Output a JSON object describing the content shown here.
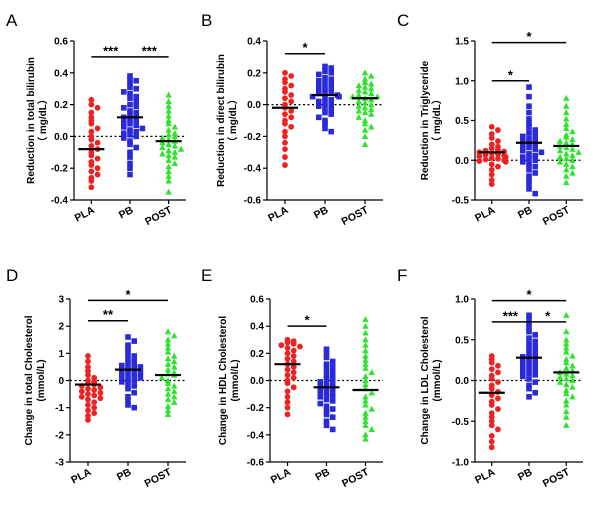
{
  "colors": {
    "PLA": "#ee2222",
    "PB": "#2a2ad8",
    "POST": "#2ee22e",
    "axis": "#000000",
    "mean": "#000000"
  },
  "chart_data": [
    {
      "panel": "A",
      "type": "scatter",
      "categories": [
        "PLA",
        "PB",
        "POST"
      ],
      "ylabel": [
        "Reduction in total bilirubin",
        "（ mg/dL）"
      ],
      "ylim": [
        -0.4,
        0.6
      ],
      "yticks": [
        -0.4,
        -0.2,
        0.0,
        0.2,
        0.4,
        0.6
      ],
      "ytick_labels": [
        "-0.4",
        "-0.2",
        "0.0",
        "0.2",
        "0.4",
        "0.6"
      ],
      "reference_line": 0,
      "grid": false,
      "series": [
        {
          "category": "PLA",
          "marker": "circle",
          "mean": -0.08,
          "values": [
            0.23,
            0.2,
            0.18,
            0.15,
            0.12,
            0.1,
            0.08,
            0.05,
            0.03,
            0.0,
            -0.02,
            -0.04,
            -0.06,
            -0.08,
            -0.1,
            -0.12,
            -0.14,
            -0.16,
            -0.18,
            -0.2,
            -0.22,
            -0.24,
            -0.26,
            -0.28,
            -0.32
          ]
        },
        {
          "category": "PB",
          "marker": "square",
          "mean": 0.12,
          "values": [
            0.38,
            0.36,
            0.35,
            0.33,
            0.31,
            0.3,
            0.28,
            0.27,
            0.25,
            0.24,
            0.22,
            0.2,
            0.19,
            0.18,
            0.16,
            0.15,
            0.14,
            0.13,
            0.12,
            0.11,
            0.1,
            0.09,
            0.08,
            0.07,
            0.06,
            0.05,
            0.04,
            0.03,
            0.02,
            0.01,
            0.0,
            -0.01,
            -0.03,
            -0.05,
            -0.07,
            -0.1,
            -0.13,
            -0.17,
            -0.2,
            -0.24
          ]
        },
        {
          "category": "POST",
          "marker": "triangle",
          "mean": -0.03,
          "values": [
            0.26,
            0.22,
            0.19,
            0.16,
            0.13,
            0.1,
            0.08,
            0.06,
            0.04,
            0.02,
            0.01,
            0.0,
            -0.01,
            -0.02,
            -0.03,
            -0.04,
            -0.05,
            -0.06,
            -0.07,
            -0.08,
            -0.09,
            -0.1,
            -0.11,
            -0.12,
            -0.13,
            -0.15,
            -0.17,
            -0.19,
            -0.22,
            -0.25,
            -0.28,
            -0.35
          ]
        }
      ],
      "significance": [
        {
          "from": "PLA",
          "to": "PB",
          "label": "***",
          "y": 0.5
        },
        {
          "from": "PB",
          "to": "POST",
          "label": "***",
          "y": 0.5
        }
      ]
    },
    {
      "panel": "B",
      "type": "scatter",
      "categories": [
        "PLA",
        "PB",
        "POST"
      ],
      "ylabel": [
        "Reduction in direct bilirubin",
        "（ mg/dL）"
      ],
      "ylim": [
        -0.6,
        0.4
      ],
      "yticks": [
        -0.6,
        -0.4,
        -0.2,
        0.0,
        0.2,
        0.4
      ],
      "ytick_labels": [
        "-0.6",
        "-0.4",
        "-0.2",
        "0.0",
        "0.2",
        "0.4"
      ],
      "reference_line": 0,
      "grid": false,
      "series": [
        {
          "category": "PLA",
          "marker": "circle",
          "mean": -0.02,
          "values": [
            0.2,
            0.18,
            0.16,
            0.14,
            0.12,
            0.1,
            0.08,
            0.06,
            0.04,
            0.02,
            0.0,
            -0.02,
            -0.04,
            -0.06,
            -0.08,
            -0.1,
            -0.12,
            -0.14,
            -0.17,
            -0.2,
            -0.24,
            -0.28,
            -0.33,
            -0.38
          ]
        },
        {
          "category": "PB",
          "marker": "square",
          "mean": 0.06,
          "values": [
            0.24,
            0.23,
            0.21,
            0.2,
            0.19,
            0.17,
            0.16,
            0.15,
            0.14,
            0.13,
            0.12,
            0.11,
            0.1,
            0.09,
            0.08,
            0.08,
            0.07,
            0.06,
            0.05,
            0.05,
            0.04,
            0.03,
            0.02,
            0.01,
            0.0,
            -0.01,
            -0.02,
            -0.03,
            -0.05,
            -0.06,
            -0.08,
            -0.1,
            -0.12,
            -0.15,
            -0.17
          ]
        },
        {
          "category": "POST",
          "marker": "triangle",
          "mean": 0.04,
          "values": [
            0.2,
            0.18,
            0.16,
            0.14,
            0.13,
            0.12,
            0.11,
            0.1,
            0.09,
            0.08,
            0.07,
            0.06,
            0.05,
            0.05,
            0.04,
            0.03,
            0.02,
            0.01,
            0.0,
            -0.01,
            -0.02,
            -0.03,
            -0.04,
            -0.05,
            -0.06,
            -0.08,
            -0.1,
            -0.12,
            -0.14,
            -0.16,
            -0.2,
            -0.25
          ]
        }
      ],
      "significance": [
        {
          "from": "PLA",
          "to": "PB",
          "label": "*",
          "y": 0.32
        }
      ]
    },
    {
      "panel": "C",
      "type": "scatter",
      "categories": [
        "PLA",
        "PB",
        "POST"
      ],
      "ylabel": [
        "Reduction in Triglyceride",
        "（ mg/dL）"
      ],
      "ylim": [
        -0.5,
        1.5
      ],
      "yticks": [
        -0.5,
        0.0,
        0.5,
        1.0,
        1.5
      ],
      "ytick_labels": [
        "-0.5",
        "0.0",
        "0.5",
        "1.0",
        "1.5"
      ],
      "reference_line": 0,
      "grid": false,
      "series": [
        {
          "category": "PLA",
          "marker": "circle",
          "mean": 0.1,
          "values": [
            0.42,
            0.38,
            0.33,
            0.28,
            0.24,
            0.2,
            0.17,
            0.15,
            0.13,
            0.12,
            0.11,
            0.1,
            0.09,
            0.08,
            0.07,
            0.06,
            0.05,
            0.04,
            0.03,
            0.02,
            0.01,
            0.0,
            -0.01,
            -0.02,
            -0.05,
            -0.08,
            -0.12,
            -0.18,
            -0.25,
            -0.3
          ]
        },
        {
          "category": "PB",
          "marker": "square",
          "mean": 0.22,
          "values": [
            0.92,
            0.8,
            0.68,
            0.6,
            0.52,
            0.47,
            0.42,
            0.38,
            0.35,
            0.32,
            0.3,
            0.28,
            0.26,
            0.24,
            0.22,
            0.2,
            0.18,
            0.16,
            0.14,
            0.12,
            0.1,
            0.08,
            0.06,
            0.04,
            0.02,
            0.0,
            -0.02,
            -0.05,
            -0.08,
            -0.12,
            -0.16,
            -0.2,
            -0.25,
            -0.3,
            -0.36,
            -0.42
          ]
        },
        {
          "category": "POST",
          "marker": "triangle",
          "mean": 0.18,
          "values": [
            0.78,
            0.68,
            0.6,
            0.52,
            0.45,
            0.4,
            0.36,
            0.32,
            0.29,
            0.26,
            0.24,
            0.22,
            0.2,
            0.18,
            0.16,
            0.14,
            0.12,
            0.1,
            0.08,
            0.06,
            0.04,
            0.02,
            0.0,
            -0.02,
            -0.05,
            -0.08,
            -0.12,
            -0.16,
            -0.2,
            -0.28
          ]
        }
      ],
      "significance": [
        {
          "from": "PLA",
          "to": "PB",
          "label": "*",
          "y": 1.0
        },
        {
          "from": "PLA",
          "to": "POST",
          "label": "*",
          "y": 1.48
        }
      ]
    },
    {
      "panel": "D",
      "type": "scatter",
      "categories": [
        "PLA",
        "PB",
        "POST"
      ],
      "ylabel": [
        "Change in total Cholesterol",
        "(mmol/L)"
      ],
      "ylim": [
        -3,
        3
      ],
      "yticks": [
        -3,
        -2,
        -1,
        0,
        1,
        2,
        3
      ],
      "ytick_labels": [
        "-3",
        "-2",
        "-1",
        "0",
        "1",
        "2",
        "3"
      ],
      "reference_line": 0,
      "grid": false,
      "series": [
        {
          "category": "PLA",
          "marker": "circle",
          "mean": -0.15,
          "values": [
            0.9,
            0.7,
            0.5,
            0.35,
            0.2,
            0.1,
            0.0,
            -0.05,
            -0.1,
            -0.15,
            -0.2,
            -0.25,
            -0.3,
            -0.35,
            -0.4,
            -0.45,
            -0.5,
            -0.55,
            -0.6,
            -0.65,
            -0.7,
            -0.8,
            -0.9,
            -1.0,
            -1.1,
            -1.2,
            -1.3,
            -1.45
          ]
        },
        {
          "category": "PB",
          "marker": "square",
          "mean": 0.4,
          "values": [
            1.6,
            1.45,
            1.3,
            1.15,
            1.0,
            0.9,
            0.8,
            0.7,
            0.65,
            0.6,
            0.55,
            0.5,
            0.45,
            0.4,
            0.35,
            0.3,
            0.25,
            0.2,
            0.15,
            0.1,
            0.05,
            0.0,
            -0.05,
            -0.1,
            -0.2,
            -0.3,
            -0.45,
            -0.6,
            -0.75,
            -0.9,
            -1.0
          ]
        },
        {
          "category": "POST",
          "marker": "triangle",
          "mean": 0.2,
          "values": [
            1.8,
            1.65,
            1.5,
            1.35,
            1.2,
            1.05,
            0.9,
            0.8,
            0.7,
            0.6,
            0.5,
            0.4,
            0.3,
            0.25,
            0.2,
            0.1,
            0.0,
            -0.1,
            -0.2,
            -0.3,
            -0.4,
            -0.5,
            -0.6,
            -0.7,
            -0.8,
            -0.95,
            -1.1,
            -1.25
          ]
        }
      ],
      "significance": [
        {
          "from": "PLA",
          "to": "PB",
          "label": "**",
          "y": 2.2
        },
        {
          "from": "PLA",
          "to": "POST",
          "label": "*",
          "y": 2.95
        }
      ]
    },
    {
      "panel": "E",
      "type": "scatter",
      "categories": [
        "PLA",
        "PB",
        "POST"
      ],
      "ylabel": [
        "Change in HDL Cholesterol",
        "(mmol/L)"
      ],
      "ylim": [
        -0.6,
        0.6
      ],
      "yticks": [
        -0.6,
        -0.4,
        -0.2,
        0.0,
        0.2,
        0.4,
        0.6
      ],
      "ytick_labels": [
        "-0.6",
        "-0.4",
        "-0.2",
        "0.0",
        "0.2",
        "0.4",
        "0.6"
      ],
      "reference_line": 0,
      "grid": false,
      "series": [
        {
          "category": "PLA",
          "marker": "circle",
          "mean": 0.12,
          "values": [
            0.3,
            0.29,
            0.28,
            0.27,
            0.26,
            0.25,
            0.24,
            0.22,
            0.2,
            0.18,
            0.16,
            0.14,
            0.12,
            0.1,
            0.08,
            0.06,
            0.04,
            0.02,
            0.0,
            -0.02,
            -0.05,
            -0.08,
            -0.12,
            -0.16,
            -0.2,
            -0.25
          ]
        },
        {
          "category": "PB",
          "marker": "square",
          "mean": -0.05,
          "values": [
            0.23,
            0.2,
            0.17,
            0.14,
            0.12,
            0.1,
            0.08,
            0.06,
            0.04,
            0.02,
            0.01,
            0.0,
            -0.01,
            -0.03,
            -0.04,
            -0.05,
            -0.06,
            -0.07,
            -0.08,
            -0.1,
            -0.11,
            -0.12,
            -0.14,
            -0.15,
            -0.17,
            -0.19,
            -0.21,
            -0.23,
            -0.25,
            -0.27,
            -0.3,
            -0.33,
            -0.36
          ]
        },
        {
          "category": "POST",
          "marker": "triangle",
          "mean": -0.07,
          "values": [
            0.45,
            0.4,
            0.35,
            0.3,
            0.26,
            0.22,
            0.18,
            0.15,
            0.12,
            0.09,
            0.06,
            0.03,
            0.0,
            -0.03,
            -0.06,
            -0.09,
            -0.12,
            -0.15,
            -0.18,
            -0.21,
            -0.24,
            -0.27,
            -0.3,
            -0.33,
            -0.36,
            -0.4,
            -0.43
          ]
        }
      ],
      "significance": [
        {
          "from": "PLA",
          "to": "PB",
          "label": "*",
          "y": 0.4
        }
      ]
    },
    {
      "panel": "F",
      "type": "scatter",
      "categories": [
        "PLA",
        "PB",
        "POST"
      ],
      "ylabel": [
        "Change in LDL Cholesterol",
        "(mmol/L)"
      ],
      "ylim": [
        -1.0,
        1.0
      ],
      "yticks": [
        -1.0,
        -0.5,
        0.0,
        0.5,
        1.0
      ],
      "ytick_labels": [
        "-1.0",
        "-0.5",
        "0.0",
        "0.5",
        "1.0"
      ],
      "reference_line": 0,
      "grid": false,
      "series": [
        {
          "category": "PLA",
          "marker": "circle",
          "mean": -0.15,
          "values": [
            0.3,
            0.26,
            0.22,
            0.18,
            0.14,
            0.1,
            0.06,
            0.02,
            -0.02,
            -0.06,
            -0.1,
            -0.14,
            -0.18,
            -0.22,
            -0.26,
            -0.3,
            -0.35,
            -0.4,
            -0.45,
            -0.5,
            -0.55,
            -0.6,
            -0.68,
            -0.75,
            -0.82
          ]
        },
        {
          "category": "PB",
          "marker": "square",
          "mean": 0.28,
          "values": [
            0.8,
            0.75,
            0.7,
            0.65,
            0.6,
            0.56,
            0.52,
            0.48,
            0.45,
            0.42,
            0.39,
            0.36,
            0.33,
            0.31,
            0.29,
            0.27,
            0.25,
            0.23,
            0.21,
            0.19,
            0.17,
            0.15,
            0.13,
            0.11,
            0.09,
            0.07,
            0.05,
            0.02,
            -0.02,
            -0.06,
            -0.1,
            -0.15,
            -0.2
          ]
        },
        {
          "category": "POST",
          "marker": "triangle",
          "mean": 0.1,
          "values": [
            0.8,
            0.6,
            0.5,
            0.45,
            0.4,
            0.35,
            0.3,
            0.26,
            0.22,
            0.18,
            0.15,
            0.12,
            0.1,
            0.08,
            0.06,
            0.04,
            0.02,
            0.0,
            -0.02,
            -0.05,
            -0.08,
            -0.12,
            -0.16,
            -0.2,
            -0.25,
            -0.3,
            -0.38,
            -0.45,
            -0.55
          ]
        }
      ],
      "significance": [
        {
          "from": "PLA",
          "to": "PB",
          "label": "***",
          "y": 0.72
        },
        {
          "from": "PB",
          "to": "POST",
          "label": "*",
          "y": 0.72
        },
        {
          "from": "PLA",
          "to": "POST",
          "label": "*",
          "y": 0.98
        }
      ]
    }
  ]
}
